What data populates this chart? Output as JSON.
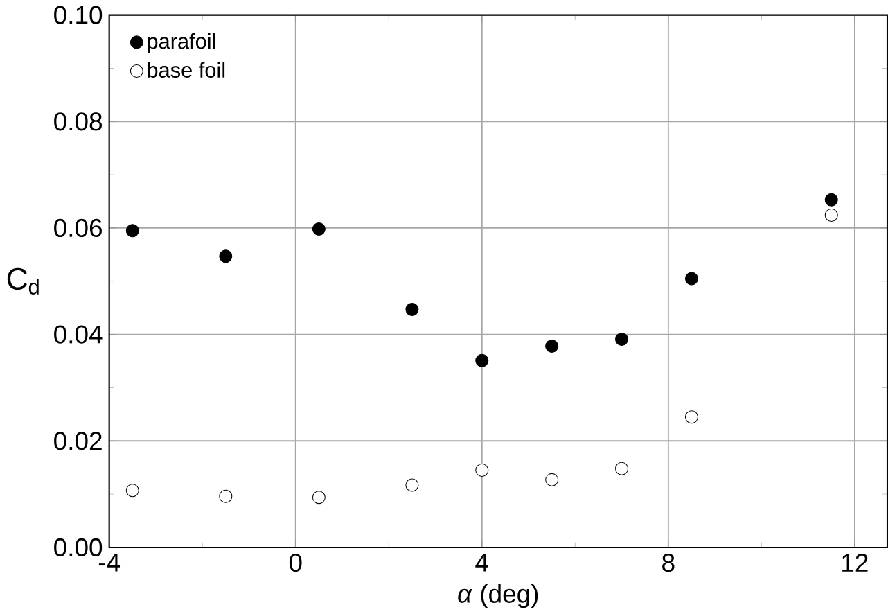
{
  "chart_data": {
    "type": "scatter",
    "xlabel": "*α* (deg)",
    "ylabel": "C$_{d}$",
    "xlim": [
      -4,
      12.7
    ],
    "xticks": [
      -4,
      0,
      4,
      8,
      12
    ],
    "ylim": [
      0,
      0.1
    ],
    "yticks": [
      {
        "value": 0,
        "label": "0.00"
      },
      {
        "value": 0.02,
        "label": "0.02"
      },
      {
        "value": 0.04,
        "label": "0.04"
      },
      {
        "value": 0.06,
        "label": "0.06"
      },
      {
        "value": 0.08,
        "label": "0.08"
      },
      {
        "value": 0.1,
        "label": "0.10"
      }
    ],
    "grid": true,
    "legend": "top left",
    "marker": "circle",
    "x": [
      -3.5,
      -1.5,
      0.5,
      2.5,
      4,
      5.5,
      7,
      8.5,
      11.5
    ],
    "series": [
      {
        "name": "parafoil",
        "color": "#000000",
        "values": [
          0.0595,
          0.0547,
          0.0598,
          0.0447,
          0.0351,
          0.0378,
          0.0391,
          0.0505,
          0.0653
        ]
      },
      {
        "name": "base foil",
        "color": "#ffffff",
        "values": [
          0.0107,
          0.0096,
          0.0094,
          0.0117,
          0.0145,
          0.0127,
          0.0148,
          0.0245,
          0.0624
        ]
      }
    ]
  }
}
